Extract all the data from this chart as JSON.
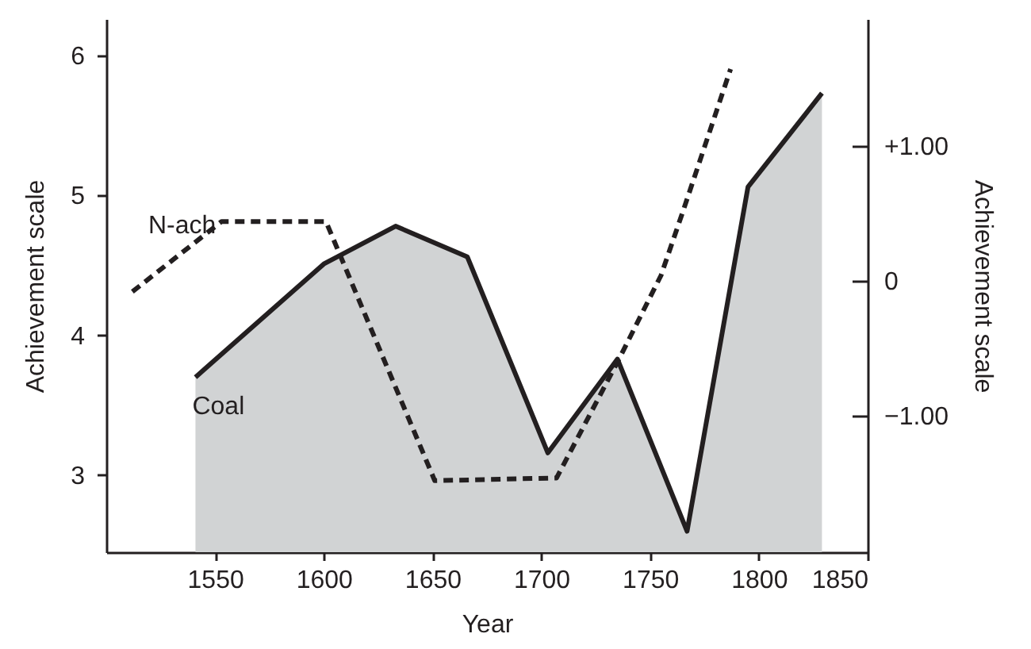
{
  "chart_data": {
    "type": "line",
    "xlabel": "Year",
    "ylabel": "Achievement scale",
    "y2label": "Achievement scale",
    "series": [
      {
        "name": "Coal",
        "type": "area",
        "color": "#d1d3d4",
        "line_style": "solid",
        "x": [
          1541,
          1600,
          1633,
          1666,
          1703,
          1735,
          1767,
          1795,
          1829
        ],
        "values": [
          3.7,
          4.51,
          4.78,
          4.56,
          3.16,
          3.83,
          2.6,
          5.06,
          5.73
        ]
      },
      {
        "name": "N-ach",
        "axis": "y2",
        "color": "#231f20",
        "line_style": "dashed",
        "x": [
          1512,
          1553,
          1601,
          1651,
          1707,
          1736,
          1755,
          1765,
          1787
        ],
        "values": [
          -0.08,
          0.44,
          0.44,
          -1.48,
          -1.46,
          -0.57,
          0.04,
          0.51,
          1.57
        ]
      }
    ],
    "xlim": [
      1500,
      1850
    ],
    "xticks": [
      1550,
      1600,
      1650,
      1700,
      1750,
      1800,
      1850
    ],
    "ylim": [
      2.45,
      6.26
    ],
    "yticks": [
      3,
      4,
      5,
      6
    ],
    "y2lim": [
      -2.01,
      1.94
    ],
    "y2ticks": [
      {
        "value": 1,
        "label": "+1.00"
      },
      {
        "value": 0,
        "label": "0"
      },
      {
        "value": -1,
        "label": "−1.00"
      }
    ],
    "grid": false,
    "legend": false
  }
}
